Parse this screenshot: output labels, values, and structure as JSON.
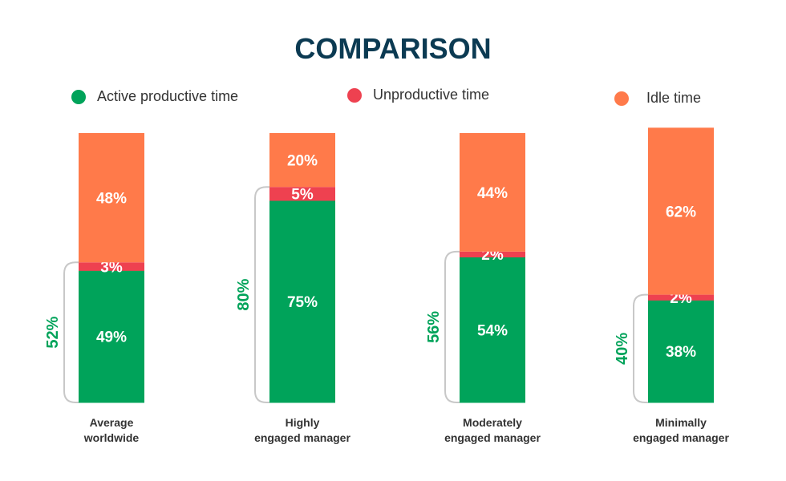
{
  "chart_data": {
    "type": "bar",
    "stacked": true,
    "title": "COMPARISON",
    "legend_placement": "top",
    "categories": [
      [
        "Average",
        "worldwide"
      ],
      [
        "Highly",
        "engaged manager"
      ],
      [
        "Moderately",
        "engaged manager"
      ],
      [
        "Minimally",
        "engaged manager"
      ]
    ],
    "series": [
      {
        "name": "Active productive time",
        "color": "#00a35a",
        "values": [
          49,
          75,
          54,
          38
        ]
      },
      {
        "name": "Unproductive time",
        "color": "#ee4150",
        "values": [
          3,
          5,
          2,
          2
        ]
      },
      {
        "name": "Idle time",
        "color": "#ff7a4a",
        "values": [
          48,
          20,
          44,
          62
        ]
      }
    ],
    "bracket_totals": [
      "52%",
      "80%",
      "56%",
      "40%"
    ],
    "ylim": [
      0,
      100
    ]
  }
}
